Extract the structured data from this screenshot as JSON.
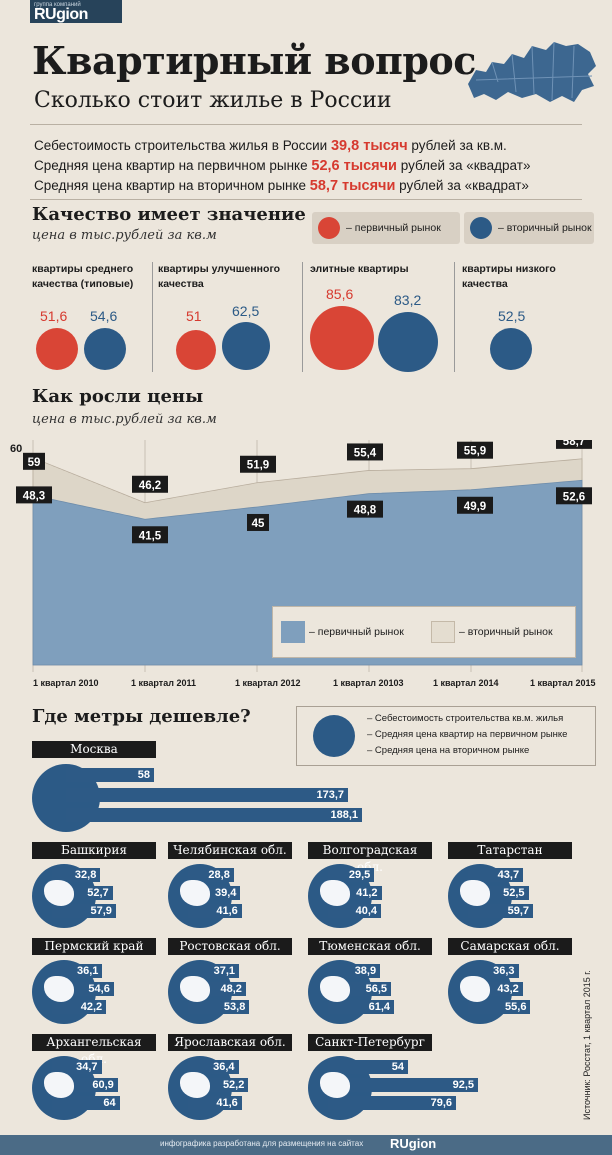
{
  "header": {
    "logo_small": "группа компаний",
    "logo": "RUgion",
    "title": "Квартирный вопрос",
    "subtitle": "Сколько стоит жилье в России"
  },
  "stats": [
    {
      "pre": "Себестоимость строительства жилья в России ",
      "val": "39,8 тысяч",
      "post": " рублей за кв.м."
    },
    {
      "pre": "Средняя цена квартир на первичном рынке ",
      "val": "52,6 тысячи",
      "post": " рублей за «квадрат»"
    },
    {
      "pre": "Средняя цена квартир на вторичном рынке ",
      "val": "58,7 тысячи",
      "post": " рублей за «квадрат»"
    }
  ],
  "quality": {
    "title": "Качество имеет значение",
    "sub": "цена в тыс.рублей за кв.м",
    "legend_primary": "– первичный рынок",
    "legend_secondary": "– вторичный рынок",
    "groups": [
      {
        "label": "квартиры среднего качества (типовые)",
        "primary": "51,6",
        "secondary": "54,6"
      },
      {
        "label": "квартиры улучшенного качества",
        "primary": "51",
        "secondary": "62,5"
      },
      {
        "label": "элитные квартиры",
        "primary": "85,6",
        "secondary": "83,2"
      },
      {
        "label": "квартиры низкого качества",
        "primary": "",
        "secondary": "52,5"
      }
    ]
  },
  "growth": {
    "title": "Как росли цены",
    "sub": "цена в тыс.рублей за кв.м",
    "ytop_label": "60",
    "legend_primary": "– первичный рынок",
    "legend_secondary": "– вторичный рынок"
  },
  "chart_data": {
    "type": "area",
    "title": "Как росли цены",
    "subtitle": "цена в тыс.рублей за кв.м",
    "categories": [
      "1 квартал 2010",
      "1 квартал 2011",
      "1 квартал 2012",
      "1 квартал 20103",
      "1 квартал 2014",
      "1 квартал 2015"
    ],
    "series": [
      {
        "name": "первичный рынок",
        "values": [
          48.3,
          41.5,
          45,
          48.8,
          49.9,
          52.6
        ],
        "labels": [
          "48,3",
          "41,5",
          "45",
          "48,8",
          "49,9",
          "52,6"
        ],
        "color": "#7f9fbd"
      },
      {
        "name": "вторичный рынок",
        "values": [
          59,
          46.2,
          51.9,
          55.4,
          55.9,
          58.7
        ],
        "labels": [
          "59",
          "46,2",
          "51,9",
          "55,4",
          "55,9",
          "58,7"
        ],
        "color": "#e4ddd0"
      }
    ],
    "ylim": [
      0,
      60
    ],
    "grid": true,
    "legend": "bottom-right"
  },
  "cheap": {
    "title": "Где метры дешевле?",
    "legend": [
      "– Себестоимость строительства кв.м. жилья",
      "– Средняя цена квартир на первичном рынке",
      "– Средняя цена на вторичном рынке"
    ],
    "moscow": {
      "name": "Москва",
      "values": [
        "58",
        "173,7",
        "188,1"
      ]
    },
    "regions": [
      {
        "name": "Башкирия",
        "values": [
          "32,8",
          "52,7",
          "57,9"
        ]
      },
      {
        "name": "Челябинская обл.",
        "values": [
          "28,8",
          "39,4",
          "41,6"
        ]
      },
      {
        "name": "Волгоградская обл.",
        "values": [
          "29,5",
          "41,2",
          "40,4"
        ]
      },
      {
        "name": "Татарстан",
        "values": [
          "43,7",
          "52,5",
          "59,7"
        ]
      },
      {
        "name": "Пермский край",
        "values": [
          "36,1",
          "54,6",
          "42,2"
        ]
      },
      {
        "name": "Ростовская обл.",
        "values": [
          "37,1",
          "48,2",
          "53,8"
        ]
      },
      {
        "name": "Тюменская обл.",
        "values": [
          "38,9",
          "56,5",
          "61,4"
        ]
      },
      {
        "name": "Самарская обл.",
        "values": [
          "36,3",
          "43,2",
          "55,6"
        ]
      },
      {
        "name": "Архангельская обл.",
        "values": [
          "34,7",
          "60,9",
          "64"
        ]
      },
      {
        "name": "Ярославская обл.",
        "values": [
          "36,4",
          "52,2",
          "41,6"
        ]
      },
      {
        "name": "Санкт-Петербург",
        "values": [
          "54",
          "92,5",
          "79,6"
        ]
      }
    ]
  },
  "source": "Источник: Росстат, 1 квартал 2015 г.",
  "footer": {
    "text": "инфографика разработана для размещения на сайтах",
    "logo": "RUgion"
  },
  "colors": {
    "accent_red": "#d63a2f",
    "blue": "#2c5a86",
    "background": "#ece6dc",
    "dark": "#1b1b1b"
  }
}
